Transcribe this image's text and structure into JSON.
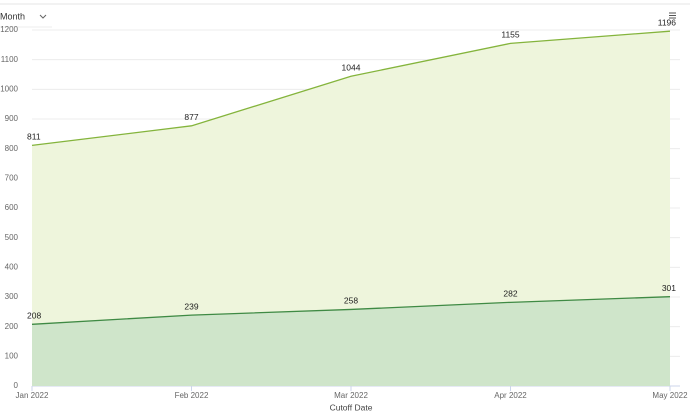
{
  "controls": {
    "period": "Month"
  },
  "chart_data": {
    "type": "area",
    "x_label": "Cutoff Date",
    "categories": [
      "Jan 2022",
      "Feb 2022",
      "Mar 2022",
      "Apr 2022",
      "May 2022"
    ],
    "series": [
      {
        "color": "#84b43c",
        "fill": "#eef5dc",
        "values": [
          811,
          877,
          1044,
          1155,
          1196
        ]
      },
      {
        "color": "#3f8a44",
        "fill": "#cfe5ca",
        "values": [
          208,
          239,
          258,
          282,
          301
        ]
      }
    ],
    "ylim": [
      0,
      1200
    ],
    "yticks": [
      0,
      100,
      200,
      300,
      400,
      500,
      600,
      700,
      800,
      900,
      1000,
      1100,
      1200
    ],
    "grid": true
  }
}
